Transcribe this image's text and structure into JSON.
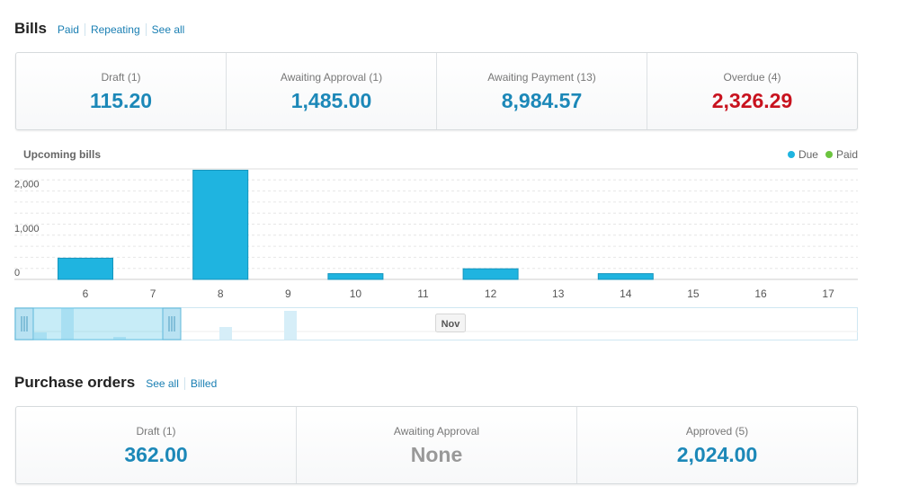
{
  "bills": {
    "title": "Bills",
    "links": [
      "Paid",
      "Repeating",
      "See all"
    ],
    "cards": [
      {
        "label": "Draft (1)",
        "value": "115.20"
      },
      {
        "label": "Awaiting Approval (1)",
        "value": "1,485.00"
      },
      {
        "label": "Awaiting Payment (13)",
        "value": "8,984.57"
      },
      {
        "label": "Overdue (4)",
        "value": "2,326.29"
      }
    ]
  },
  "chart": {
    "month_label": "Nov"
  },
  "chart_data": {
    "type": "bar",
    "title": "Upcoming bills",
    "categories": [
      "6",
      "7",
      "8",
      "9",
      "10",
      "11",
      "12",
      "13",
      "14",
      "15",
      "16",
      "17"
    ],
    "series": [
      {
        "name": "Due",
        "values": [
          480,
          0,
          2470,
          0,
          130,
          0,
          240,
          0,
          130,
          0,
          0,
          0
        ]
      },
      {
        "name": "Paid",
        "values": [
          0,
          0,
          0,
          0,
          0,
          0,
          0,
          0,
          0,
          0,
          0,
          0
        ]
      }
    ],
    "yticks": [
      "0",
      "1,000",
      "2,000"
    ],
    "ylim": [
      0,
      2500
    ],
    "grid": true,
    "legend": "top-right",
    "colors": {
      "Due": "#1fb4e0",
      "Paid": "#6cc43f"
    }
  },
  "purchase_orders": {
    "title": "Purchase orders",
    "links": [
      "See all",
      "Billed"
    ],
    "cards": [
      {
        "label": "Draft (1)",
        "value": "362.00"
      },
      {
        "label": "Awaiting Approval",
        "value": "None"
      },
      {
        "label": "Approved (5)",
        "value": "2,024.00"
      }
    ]
  }
}
